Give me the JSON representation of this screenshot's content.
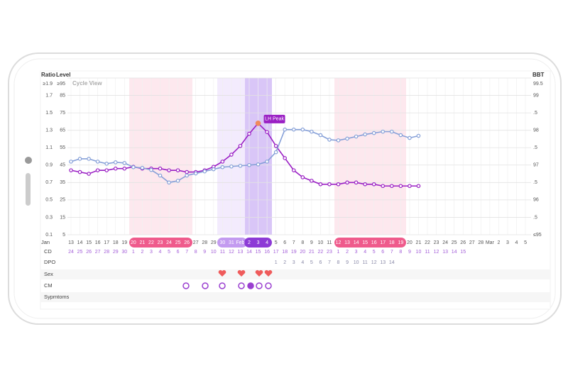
{
  "header": {
    "title": "Cycle View"
  },
  "chart_data": {
    "type": "line",
    "month": "Jan",
    "categories": [
      "13",
      "14",
      "15",
      "16",
      "17",
      "18",
      "19",
      "20",
      "21",
      "22",
      "23",
      "24",
      "25",
      "26",
      "27",
      "28",
      "29",
      "30",
      "31",
      "Feb",
      "2",
      "3",
      "4",
      "5",
      "6",
      "7",
      "8",
      "9",
      "10",
      "11",
      "12",
      "13",
      "14",
      "15",
      "16",
      "17",
      "18",
      "19",
      "20",
      "21",
      "22",
      "23",
      "24",
      "25",
      "26",
      "27",
      "28",
      "Mar",
      "2",
      "3",
      "4",
      "5"
    ],
    "series": [
      {
        "name": "Level",
        "color": "#9a1fc4",
        "values": [
          42,
          41,
          40,
          42,
          42,
          43,
          43,
          44,
          43,
          43,
          43,
          42,
          42,
          41,
          41,
          42,
          44,
          47,
          51,
          56,
          63,
          69,
          64,
          56,
          49,
          42,
          38,
          36,
          34,
          34,
          34,
          35,
          35,
          34,
          34,
          33,
          33,
          33,
          33,
          33,
          null,
          null,
          null,
          null,
          null,
          null,
          null,
          null,
          null,
          null,
          null,
          null
        ]
      },
      {
        "name": "BBT",
        "color": "#86a0d8",
        "axis": "y2",
        "values": [
          97.1,
          97.18,
          97.18,
          97.1,
          97.04,
          97.08,
          97.06,
          96.94,
          96.92,
          96.86,
          96.7,
          96.5,
          96.55,
          96.7,
          96.76,
          96.82,
          96.88,
          96.94,
          96.96,
          96.98,
          97,
          97.02,
          97.1,
          97.37,
          98.02,
          98.02,
          98.02,
          97.96,
          97.86,
          97.73,
          97.71,
          97.76,
          97.82,
          97.88,
          97.92,
          97.96,
          97.96,
          97.86,
          97.78,
          97.84,
          null,
          null,
          null,
          null,
          null,
          null,
          null,
          null,
          null,
          null,
          null,
          null
        ]
      }
    ],
    "ylim": [
      5,
      95
    ],
    "yticks": [
      5,
      15,
      25,
      35,
      45,
      55,
      65,
      75,
      85,
      {
        "value": 95,
        "label": "≥95"
      }
    ],
    "y2lim": [
      95,
      99.5
    ],
    "y2ticks": [
      {
        "value": 95,
        "label": "≤95"
      },
      {
        "value": 95.5,
        "label": ".5"
      },
      96,
      {
        "value": 96.5,
        "label": ".5"
      },
      97,
      {
        "value": 97.5,
        "label": ".5"
      },
      98,
      {
        "value": 98.5,
        "label": ".5"
      },
      99,
      99.5
    ],
    "y3label": "Ratio",
    "y3lim": [
      0.1,
      1.9
    ],
    "y3ticks": [
      0.1,
      0.3,
      0.5,
      0.7,
      0.9,
      1.1,
      1.3,
      1.5,
      1.7,
      {
        "value": 1.9,
        "label": "≥1.9"
      }
    ],
    "annotation": "LH Peak",
    "grid": true
  },
  "rows": {
    "cd": {
      "label": "CD",
      "values": [
        24,
        25,
        26,
        27,
        28,
        29,
        30,
        1,
        2,
        3,
        4,
        5,
        6,
        7,
        8,
        9,
        10,
        11,
        12,
        13,
        14,
        15,
        16,
        17,
        18,
        19,
        20,
        21,
        22,
        23,
        1,
        2,
        3,
        4,
        5,
        6,
        7,
        8,
        9,
        10,
        11,
        12,
        13,
        14,
        15,
        null,
        null,
        null,
        null,
        null,
        null,
        null
      ]
    },
    "dpo": {
      "label": "DPO",
      "values": [
        null,
        null,
        null,
        null,
        null,
        null,
        null,
        null,
        null,
        null,
        null,
        null,
        null,
        null,
        null,
        null,
        null,
        null,
        null,
        null,
        null,
        null,
        null,
        1,
        2,
        3,
        4,
        5,
        6,
        7,
        8,
        9,
        10,
        11,
        12,
        13,
        14,
        null,
        null,
        null,
        null,
        null,
        null,
        null,
        null,
        null,
        null,
        null,
        null,
        null,
        null,
        null
      ]
    },
    "sex": {
      "label": "Sex"
    },
    "cm": {
      "label": "CM"
    },
    "symptoms": {
      "label": "Sypmtoms"
    }
  }
}
